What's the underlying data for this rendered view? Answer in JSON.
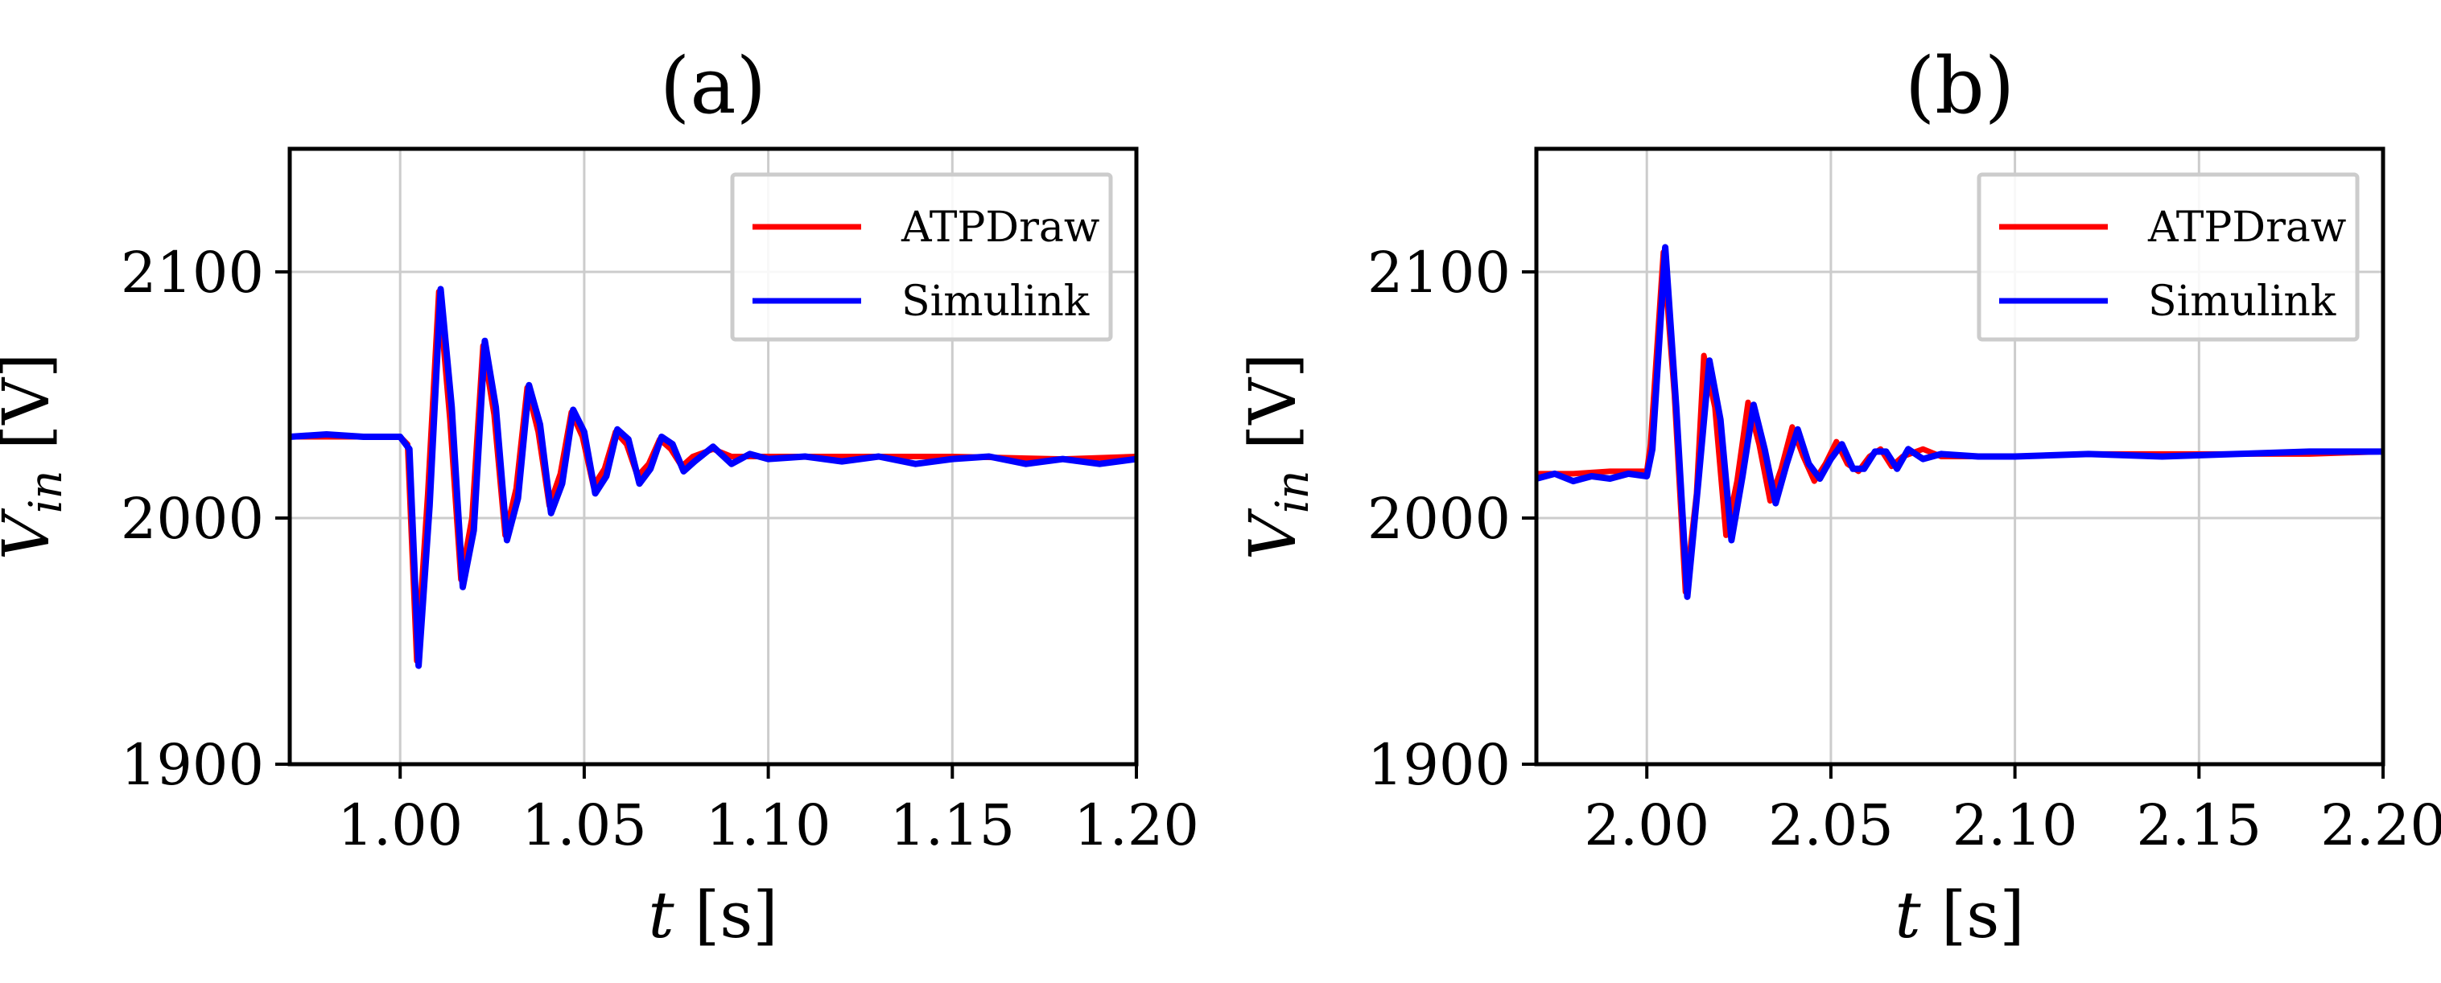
{
  "chart_data": [
    {
      "type": "line",
      "title": "(a)",
      "xlabel_var": "t",
      "xlabel_unit": "[s]",
      "ylabel_var": "V",
      "ylabel_sub": "in",
      "ylabel_unit": "[V]",
      "xlim": [
        0.97,
        1.2
      ],
      "ylim": [
        1900,
        2150
      ],
      "xticks": [
        1.0,
        1.05,
        1.1,
        1.15,
        1.2
      ],
      "xtick_labels": [
        "1.00",
        "1.05",
        "1.10",
        "1.15",
        "1.20"
      ],
      "yticks": [
        1900,
        2000,
        2100
      ],
      "ytick_labels": [
        "1900",
        "2000",
        "2100"
      ],
      "grid": true,
      "legend_position": "top-right",
      "series": [
        {
          "name": "ATPDraw",
          "color": "#ff0000",
          "x": [
            0.97,
            0.98,
            0.99,
            1.0,
            1.002,
            1.0045,
            1.0075,
            1.0105,
            1.0135,
            1.0165,
            1.0195,
            1.0225,
            1.0255,
            1.0285,
            1.0315,
            1.0345,
            1.0375,
            1.0405,
            1.0435,
            1.0465,
            1.0495,
            1.0525,
            1.0555,
            1.0585,
            1.0615,
            1.0645,
            1.0675,
            1.0705,
            1.0735,
            1.0765,
            1.0795,
            1.085,
            1.09,
            1.1,
            1.12,
            1.15,
            1.18,
            1.2
          ],
          "y": [
            2033,
            2033,
            2033,
            2033,
            2030,
            1942,
            2010,
            2092,
            2040,
            1975,
            2000,
            2070,
            2042,
            1993,
            2012,
            2053,
            2035,
            2005,
            2018,
            2043,
            2033,
            2013,
            2020,
            2035,
            2030,
            2017,
            2022,
            2032,
            2028,
            2021,
            2025,
            2028,
            2025,
            2025,
            2025,
            2025,
            2024,
            2025
          ]
        },
        {
          "name": "Simulink",
          "color": "#0000ff",
          "x": [
            0.97,
            0.98,
            0.99,
            1.0,
            1.0025,
            1.005,
            1.008,
            1.011,
            1.014,
            1.017,
            1.02,
            1.023,
            1.026,
            1.029,
            1.032,
            1.035,
            1.038,
            1.041,
            1.044,
            1.047,
            1.05,
            1.053,
            1.056,
            1.059,
            1.062,
            1.065,
            1.068,
            1.071,
            1.074,
            1.077,
            1.08,
            1.085,
            1.09,
            1.095,
            1.1,
            1.11,
            1.12,
            1.13,
            1.14,
            1.15,
            1.16,
            1.17,
            1.18,
            1.19,
            1.2
          ],
          "y": [
            2033,
            2034,
            2033,
            2033,
            2028,
            1940,
            2005,
            2093,
            2045,
            1972,
            1995,
            2072,
            2045,
            1991,
            2008,
            2054,
            2038,
            2002,
            2014,
            2044,
            2035,
            2010,
            2017,
            2036,
            2032,
            2014,
            2020,
            2033,
            2030,
            2019,
            2023,
            2029,
            2022,
            2026,
            2024,
            2025,
            2023,
            2025,
            2022,
            2024,
            2025,
            2022,
            2024,
            2022,
            2024
          ]
        }
      ]
    },
    {
      "type": "line",
      "title": "(b)",
      "xlabel_var": "t",
      "xlabel_unit": "[s]",
      "ylabel_var": "V",
      "ylabel_sub": "in",
      "ylabel_unit": "[V]",
      "xlim": [
        1.97,
        2.2
      ],
      "ylim": [
        1900,
        2150
      ],
      "xticks": [
        2.0,
        2.05,
        2.1,
        2.15,
        2.2
      ],
      "xtick_labels": [
        "2.00",
        "2.05",
        "2.10",
        "2.15",
        "2.20"
      ],
      "yticks": [
        1900,
        2000,
        2100
      ],
      "ytick_labels": [
        "1900",
        "2000",
        "2100"
      ],
      "grid": true,
      "legend_position": "top-right",
      "series": [
        {
          "name": "ATPDraw",
          "color": "#ff0000",
          "x": [
            1.97,
            1.98,
            1.99,
            2.0,
            2.001,
            2.0045,
            2.0075,
            2.0105,
            2.0135,
            2.0155,
            2.0185,
            2.0215,
            2.0245,
            2.0275,
            2.0305,
            2.0335,
            2.0365,
            2.0395,
            2.0425,
            2.0455,
            2.0485,
            2.0515,
            2.0545,
            2.0575,
            2.0605,
            2.0635,
            2.0665,
            2.0695,
            2.075,
            2.08,
            2.1,
            2.12,
            2.15,
            2.18,
            2.2
          ],
          "y": [
            2018,
            2018,
            2019,
            2019,
            2030,
            2108,
            2050,
            1970,
            2010,
            2066,
            2045,
            1993,
            2015,
            2047,
            2030,
            2007,
            2020,
            2037,
            2025,
            2015,
            2022,
            2031,
            2022,
            2019,
            2025,
            2028,
            2021,
            2025,
            2028,
            2025,
            2025,
            2026,
            2026,
            2026,
            2027
          ]
        },
        {
          "name": "Simulink",
          "color": "#0000ff",
          "x": [
            1.97,
            1.975,
            1.98,
            1.985,
            1.99,
            1.995,
            2.0,
            2.0015,
            2.005,
            2.008,
            2.011,
            2.014,
            2.017,
            2.02,
            2.023,
            2.026,
            2.029,
            2.032,
            2.035,
            2.038,
            2.041,
            2.044,
            2.047,
            2.05,
            2.053,
            2.056,
            2.059,
            2.062,
            2.065,
            2.068,
            2.071,
            2.075,
            2.08,
            2.09,
            2.1,
            2.12,
            2.14,
            2.16,
            2.18,
            2.2
          ],
          "y": [
            2016,
            2018,
            2015,
            2017,
            2016,
            2018,
            2017,
            2028,
            2110,
            2045,
            1968,
            2015,
            2064,
            2040,
            1991,
            2017,
            2046,
            2028,
            2006,
            2022,
            2036,
            2022,
            2016,
            2024,
            2030,
            2020,
            2020,
            2027,
            2027,
            2020,
            2028,
            2024,
            2026,
            2025,
            2025,
            2026,
            2025,
            2026,
            2027,
            2027
          ]
        }
      ]
    }
  ]
}
